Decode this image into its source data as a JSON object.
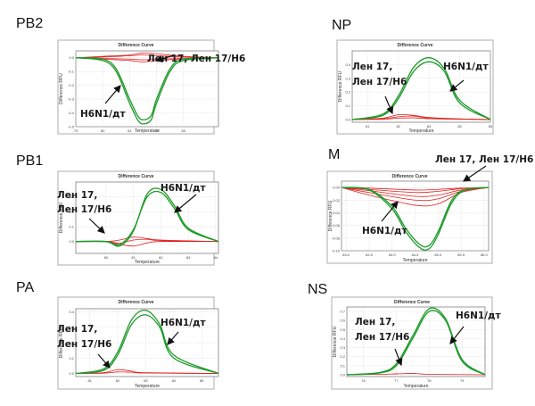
{
  "chart_data": [
    {
      "panel": "PB2",
      "type": "line",
      "title": "Difference Curve",
      "xlabel": "Temperature",
      "ylabel": "Difference RFU",
      "xlim": [
        79,
        84.3
      ],
      "ylim": [
        -0.5,
        0.05
      ],
      "xticks": [
        "79",
        "80",
        "81",
        "82",
        "83"
      ],
      "yticks": [
        "0.0",
        "-0.1",
        "-0.2",
        "-0.3",
        "-0.4",
        "-0.5"
      ],
      "grid": true,
      "series": [
        {
          "color": "#1e9a2a",
          "x": [
            79,
            80,
            80.5,
            81,
            81.3,
            81.5,
            81.8,
            82,
            82.5,
            83,
            84.3
          ],
          "y": [
            0,
            -0.01,
            -0.08,
            -0.3,
            -0.42,
            -0.45,
            -0.42,
            -0.3,
            -0.08,
            -0.01,
            0
          ]
        },
        {
          "color": "#1e9a2a",
          "x": [
            79,
            80,
            80.5,
            81,
            81.3,
            81.5,
            81.8,
            82,
            82.5,
            83,
            84.3
          ],
          "y": [
            0,
            -0.02,
            -0.1,
            -0.33,
            -0.45,
            -0.48,
            -0.45,
            -0.33,
            -0.1,
            -0.02,
            0
          ]
        },
        {
          "color": "#e02020",
          "x": [
            79,
            80,
            81,
            81.5,
            82,
            83,
            84.3
          ],
          "y": [
            0,
            0.01,
            0.02,
            0.035,
            0.03,
            0.01,
            0
          ]
        },
        {
          "color": "#e02020",
          "x": [
            79,
            80,
            81,
            81.5,
            82,
            83,
            84.3
          ],
          "y": [
            0,
            -0.005,
            -0.01,
            -0.015,
            -0.01,
            -0.005,
            0
          ]
        },
        {
          "color": "#e02020",
          "x": [
            79,
            80,
            81,
            81.5,
            82,
            83,
            84.3
          ],
          "y": [
            0,
            0.005,
            0.015,
            0.02,
            0.015,
            0.005,
            0
          ]
        },
        {
          "color": "#e02020",
          "x": [
            79,
            80,
            81,
            81.5,
            82,
            83,
            84.3
          ],
          "y": [
            0,
            -0.01,
            -0.02,
            -0.03,
            -0.02,
            -0.01,
            0
          ]
        }
      ],
      "annotations": [
        {
          "text": "Лен 17, Лен 17/Н6"
        },
        {
          "text": "H6N1/дт"
        }
      ]
    },
    {
      "panel": "NP",
      "type": "line",
      "title": "Difference Curve",
      "xlabel": "Temperature",
      "ylabel": "Difference RFU",
      "xlim": [
        80.5,
        85
      ],
      "ylim": [
        -0.02,
        0.5
      ],
      "xticks": [
        "81",
        "82",
        "83",
        "84",
        "85"
      ],
      "yticks": [
        "0.0",
        "0.1",
        "0.2",
        "0.3",
        "0.4"
      ],
      "grid": true,
      "series": [
        {
          "color": "#1e9a2a",
          "x": [
            80.5,
            81.5,
            82,
            82.5,
            83,
            83.5,
            84,
            85
          ],
          "y": [
            0,
            0.03,
            0.15,
            0.35,
            0.42,
            0.35,
            0.12,
            0
          ]
        },
        {
          "color": "#1e9a2a",
          "x": [
            80.5,
            81.5,
            82,
            82.5,
            83,
            83.5,
            84,
            85
          ],
          "y": [
            0,
            0.04,
            0.17,
            0.38,
            0.45,
            0.37,
            0.14,
            0
          ]
        },
        {
          "color": "#e02020",
          "x": [
            80.5,
            81.5,
            82,
            82.5,
            83,
            84,
            85
          ],
          "y": [
            0,
            0.01,
            0.035,
            0.03,
            0.015,
            0.005,
            0
          ]
        },
        {
          "color": "#e02020",
          "x": [
            80.5,
            81.5,
            82,
            82.5,
            83,
            84,
            85
          ],
          "y": [
            0,
            0.005,
            0.02,
            0.025,
            0.01,
            0.003,
            0
          ]
        },
        {
          "color": "#e02020",
          "x": [
            80.5,
            81.5,
            82,
            82.5,
            83,
            84,
            85
          ],
          "y": [
            0,
            0.002,
            0.01,
            0.012,
            0.006,
            0.002,
            0
          ]
        }
      ],
      "annotations": [
        {
          "text": "Лен 17,"
        },
        {
          "text": "Лен 17/Н6"
        },
        {
          "text": "H6N1/дт"
        }
      ]
    },
    {
      "panel": "PB1",
      "type": "line",
      "title": "Difference Curve",
      "xlabel": "Temperature",
      "ylabel": "Difference RFU",
      "xlim": [
        78.9,
        84.1
      ],
      "ylim": [
        -0.08,
        0.4
      ],
      "xticks": [
        "80",
        "81",
        "82",
        "83",
        "84"
      ],
      "yticks": [
        "0.3",
        "0.2",
        "0.1",
        "0.0"
      ],
      "grid": true,
      "series": [
        {
          "color": "#1e9a2a",
          "x": [
            78.9,
            80,
            80.5,
            81,
            81.5,
            82,
            82.5,
            83,
            84.1
          ],
          "y": [
            0,
            0,
            -0.02,
            0.08,
            0.3,
            0.33,
            0.22,
            0.08,
            0
          ]
        },
        {
          "color": "#1e9a2a",
          "x": [
            78.9,
            80,
            80.5,
            81,
            81.5,
            82,
            82.5,
            83,
            84.1
          ],
          "y": [
            0,
            0,
            -0.03,
            0.07,
            0.32,
            0.35,
            0.24,
            0.09,
            0
          ]
        },
        {
          "color": "#e02020",
          "x": [
            78.9,
            80,
            80.5,
            81,
            81.5,
            82,
            84.1
          ],
          "y": [
            0,
            0,
            -0.02,
            -0.03,
            -0.01,
            0,
            0
          ]
        },
        {
          "color": "#e02020",
          "x": [
            78.9,
            80,
            80.5,
            81,
            81.5,
            82,
            84.1
          ],
          "y": [
            0,
            0,
            0.01,
            0.03,
            0.02,
            0.01,
            0
          ]
        },
        {
          "color": "#e02020",
          "x": [
            78.9,
            80,
            80.5,
            81,
            81.5,
            82,
            84.1
          ],
          "y": [
            0,
            0,
            -0.01,
            0.01,
            0.015,
            0.005,
            0
          ]
        }
      ],
      "annotations": [
        {
          "text": "Лен 17,"
        },
        {
          "text": "Лен 17/Н6"
        },
        {
          "text": "H6N1/дт"
        }
      ]
    },
    {
      "panel": "M",
      "type": "line",
      "title": "Difference Curve",
      "xlabel": "Temperature",
      "ylabel": "Difference RFU",
      "xlim": [
        82.9,
        86.1
      ],
      "ylim": [
        -0.1,
        0.01
      ],
      "xticks": [
        "83.0",
        "83.5",
        "84.0",
        "84.5",
        "85.0",
        "85.5",
        "86.0"
      ],
      "yticks": [
        "0.00",
        "-0.02",
        "-0.04",
        "-0.06",
        "-0.08",
        "-0.10"
      ],
      "grid": true,
      "series": [
        {
          "color": "#1e9a2a",
          "x": [
            82.9,
            83.5,
            84,
            84.3,
            84.6,
            84.8,
            85,
            85.3,
            85.6,
            86.1
          ],
          "y": [
            0,
            -0.003,
            -0.03,
            -0.065,
            -0.09,
            -0.092,
            -0.07,
            -0.02,
            -0.003,
            0
          ]
        },
        {
          "color": "#1e9a2a",
          "x": [
            82.9,
            83.5,
            84,
            84.3,
            84.6,
            84.8,
            85,
            85.3,
            85.6,
            86.1
          ],
          "y": [
            0,
            -0.004,
            -0.034,
            -0.07,
            -0.095,
            -0.097,
            -0.075,
            -0.024,
            -0.004,
            0
          ]
        },
        {
          "color": "#e02020",
          "x": [
            82.9,
            83.5,
            84.5,
            85,
            85.5,
            86.1
          ],
          "y": [
            0,
            -0.003,
            -0.008,
            -0.006,
            -0.002,
            0
          ]
        },
        {
          "color": "#e02020",
          "x": [
            82.9,
            83.5,
            84.5,
            85,
            85.5,
            86.1
          ],
          "y": [
            0,
            -0.005,
            -0.014,
            -0.012,
            -0.004,
            0
          ]
        },
        {
          "color": "#e02020",
          "x": [
            82.9,
            83.5,
            84.5,
            85,
            85.5,
            86.1
          ],
          "y": [
            0,
            -0.008,
            -0.02,
            -0.018,
            -0.006,
            0
          ]
        },
        {
          "color": "#e02020",
          "x": [
            82.9,
            83.5,
            84.5,
            85,
            85.5,
            86.1
          ],
          "y": [
            0,
            -0.012,
            -0.028,
            -0.026,
            -0.008,
            0
          ]
        },
        {
          "color": "#e02020",
          "x": [
            82.9,
            83.5,
            84.5,
            85,
            85.5,
            86.1
          ],
          "y": [
            0,
            -0.001,
            -0.004,
            -0.003,
            -0.001,
            0
          ]
        }
      ],
      "annotations": [
        {
          "text": "Лен 17, Лен 17/Н6"
        },
        {
          "text": "H6N1/дт"
        }
      ]
    },
    {
      "panel": "PA",
      "type": "line",
      "title": "Difference Curve",
      "xlabel": "Temperature",
      "ylabel": "Difference RFU",
      "xlim": [
        80.5,
        85.6
      ],
      "ylim": [
        -0.02,
        0.42
      ],
      "xticks": [
        "81",
        "82",
        "83",
        "84",
        "85"
      ],
      "yticks": [
        "0.4",
        "0.3",
        "0.2",
        "0.1",
        "0.0"
      ],
      "grid": true,
      "series": [
        {
          "color": "#1e9a2a",
          "x": [
            80.5,
            81.5,
            82,
            82.5,
            83,
            83.5,
            84,
            85.6
          ],
          "y": [
            0,
            0.02,
            0.12,
            0.32,
            0.38,
            0.3,
            0.1,
            0
          ]
        },
        {
          "color": "#1e9a2a",
          "x": [
            80.5,
            81.5,
            82,
            82.5,
            83,
            83.5,
            84,
            85.6
          ],
          "y": [
            0,
            0.03,
            0.14,
            0.35,
            0.41,
            0.32,
            0.12,
            0
          ]
        },
        {
          "color": "#e02020",
          "x": [
            80.5,
            81.5,
            82,
            82.5,
            83,
            85.6
          ],
          "y": [
            0,
            0.005,
            0.025,
            0.015,
            0.005,
            0
          ]
        },
        {
          "color": "#e02020",
          "x": [
            80.5,
            81.5,
            82,
            82.5,
            83,
            85.6
          ],
          "y": [
            0,
            0.002,
            0.01,
            0.008,
            0.003,
            0
          ]
        }
      ],
      "annotations": [
        {
          "text": "Лен 17,"
        },
        {
          "text": "Лен 17/Н6"
        },
        {
          "text": "H6N1/дт"
        }
      ]
    },
    {
      "panel": "NS",
      "type": "line",
      "title": "Difference Curve",
      "xlabel": "Temperature",
      "ylabel": "Difference RFU",
      "xlim": [
        75.5,
        79.7
      ],
      "ylim": [
        -0.02,
        0.75
      ],
      "xticks": [
        "76",
        "77",
        "78",
        "79"
      ],
      "yticks": [
        "0.7",
        "0.6",
        "0.5",
        "0.4",
        "0.3",
        "0.2",
        "0.1",
        "0.0"
      ],
      "grid": true,
      "series": [
        {
          "color": "#1e9a2a",
          "x": [
            75.5,
            76.5,
            77,
            77.5,
            78,
            78.5,
            79,
            79.7
          ],
          "y": [
            0,
            0.02,
            0.1,
            0.4,
            0.7,
            0.6,
            0.15,
            0
          ]
        },
        {
          "color": "#1e9a2a",
          "x": [
            75.5,
            76.5,
            77,
            77.5,
            78,
            78.5,
            79,
            79.7
          ],
          "y": [
            0,
            0.025,
            0.12,
            0.43,
            0.73,
            0.62,
            0.17,
            0
          ]
        },
        {
          "color": "#e02020",
          "x": [
            75.5,
            76.5,
            77,
            77.5,
            78,
            79.7
          ],
          "y": [
            0,
            0.005,
            0.01,
            0.015,
            0.005,
            0
          ]
        }
      ],
      "annotations": [
        {
          "text": "Лен 17,"
        },
        {
          "text": "Лен 17/Н6"
        },
        {
          "text": "H6N1/дт"
        }
      ]
    }
  ]
}
